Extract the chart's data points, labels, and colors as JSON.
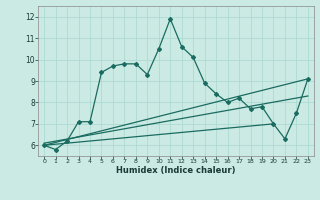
{
  "xlabel": "Humidex (Indice chaleur)",
  "bg_color": "#cceae4",
  "line_color": "#1a6b60",
  "grid_color": "#a8d8d0",
  "xlim": [
    -0.5,
    23.5
  ],
  "ylim": [
    5.5,
    12.5
  ],
  "xticks": [
    0,
    1,
    2,
    3,
    4,
    5,
    6,
    7,
    8,
    9,
    10,
    11,
    12,
    13,
    14,
    15,
    16,
    17,
    18,
    19,
    20,
    21,
    22,
    23
  ],
  "yticks": [
    6,
    7,
    8,
    9,
    10,
    11,
    12
  ],
  "main_x": [
    0,
    1,
    2,
    3,
    4,
    5,
    6,
    7,
    8,
    9,
    10,
    11,
    12,
    13,
    14,
    15,
    16,
    17,
    18,
    19,
    20,
    21,
    22,
    23
  ],
  "main_y": [
    6.0,
    5.8,
    6.2,
    7.1,
    7.1,
    9.4,
    9.7,
    9.8,
    9.8,
    9.3,
    10.5,
    11.9,
    10.6,
    10.1,
    8.9,
    8.4,
    8.0,
    8.2,
    7.7,
    7.8,
    7.0,
    6.3,
    7.5,
    9.1
  ],
  "line2_x": [
    0,
    23
  ],
  "line2_y": [
    6.0,
    9.1
  ],
  "line3_x": [
    0,
    20
  ],
  "line3_y": [
    6.0,
    7.0
  ],
  "line4_x": [
    0,
    23
  ],
  "line4_y": [
    6.1,
    8.3
  ]
}
